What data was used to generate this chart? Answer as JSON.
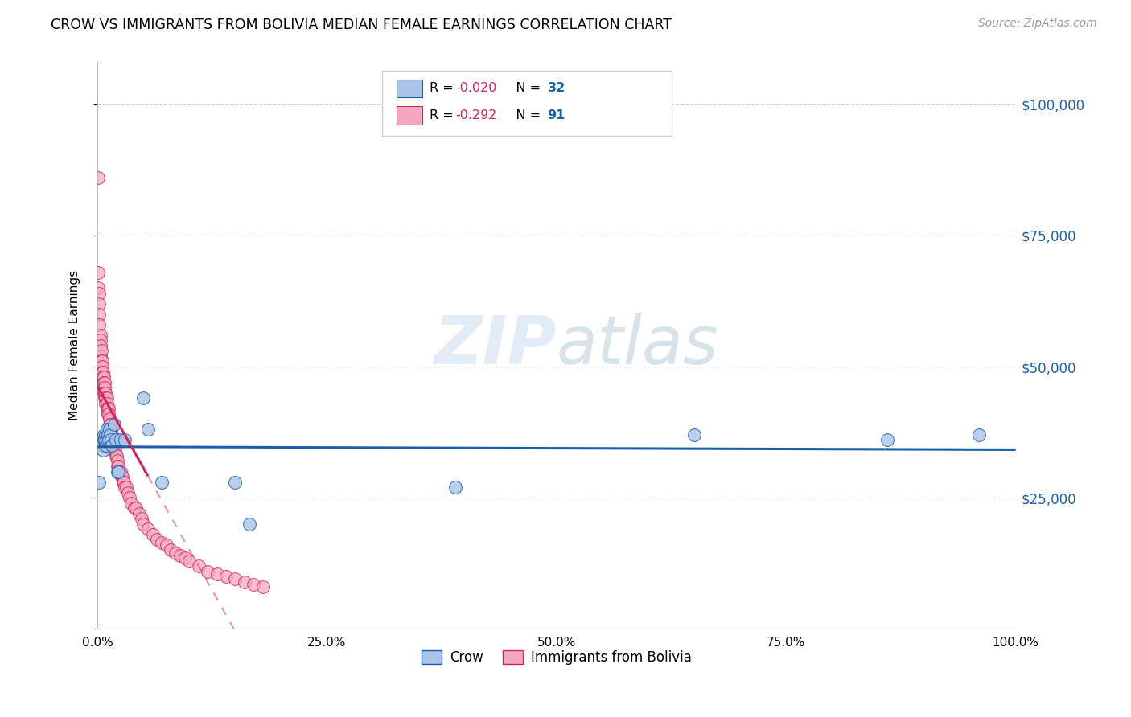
{
  "title": "CROW VS IMMIGRANTS FROM BOLIVIA MEDIAN FEMALE EARNINGS CORRELATION CHART",
  "source": "Source: ZipAtlas.com",
  "ylabel": "Median Female Earnings",
  "yticks": [
    0,
    25000,
    50000,
    75000,
    100000
  ],
  "ytick_labels": [
    "",
    "$25,000",
    "$50,000",
    "$75,000",
    "$100,000"
  ],
  "xlim": [
    0,
    1.0
  ],
  "ylim": [
    0,
    108000
  ],
  "crow_R": "-0.020",
  "crow_N": "32",
  "bolivia_R": "-0.292",
  "bolivia_N": "91",
  "crow_color": "#aac4e8",
  "crow_edge_color": "#1a5fa8",
  "bolivia_color": "#f4a8c0",
  "bolivia_edge_color": "#d42060",
  "crow_line_color": "#1a5fa8",
  "bolivia_line_color": "#d42060",
  "crow_scatter_x": [
    0.002,
    0.004,
    0.005,
    0.006,
    0.007,
    0.007,
    0.008,
    0.009,
    0.009,
    0.01,
    0.01,
    0.011,
    0.012,
    0.013,
    0.014,
    0.015,
    0.016,
    0.018,
    0.02,
    0.022,
    0.023,
    0.025,
    0.03,
    0.05,
    0.055,
    0.07,
    0.15,
    0.165,
    0.39,
    0.65,
    0.86,
    0.96
  ],
  "crow_scatter_y": [
    28000,
    36000,
    35000,
    34000,
    36000,
    37000,
    36000,
    35000,
    37000,
    36000,
    38000,
    37000,
    36000,
    38000,
    37000,
    36000,
    35000,
    39000,
    36000,
    30000,
    30000,
    36000,
    36000,
    44000,
    38000,
    28000,
    28000,
    20000,
    27000,
    37000,
    36000,
    37000
  ],
  "bolivia_scatter_x": [
    0.001,
    0.001,
    0.001,
    0.002,
    0.002,
    0.002,
    0.002,
    0.003,
    0.003,
    0.003,
    0.003,
    0.004,
    0.004,
    0.004,
    0.004,
    0.005,
    0.005,
    0.005,
    0.005,
    0.006,
    0.006,
    0.006,
    0.007,
    0.007,
    0.007,
    0.007,
    0.008,
    0.008,
    0.008,
    0.008,
    0.009,
    0.009,
    0.009,
    0.01,
    0.01,
    0.01,
    0.011,
    0.011,
    0.012,
    0.012,
    0.013,
    0.013,
    0.014,
    0.015,
    0.015,
    0.016,
    0.016,
    0.017,
    0.017,
    0.018,
    0.018,
    0.019,
    0.02,
    0.021,
    0.022,
    0.022,
    0.023,
    0.024,
    0.025,
    0.026,
    0.027,
    0.028,
    0.029,
    0.03,
    0.031,
    0.033,
    0.035,
    0.037,
    0.04,
    0.042,
    0.045,
    0.048,
    0.05,
    0.055,
    0.06,
    0.065,
    0.07,
    0.075,
    0.08,
    0.085,
    0.09,
    0.095,
    0.1,
    0.11,
    0.12,
    0.13,
    0.14,
    0.15,
    0.16,
    0.17,
    0.18
  ],
  "bolivia_scatter_y": [
    86000,
    68000,
    65000,
    64000,
    62000,
    60000,
    58000,
    56000,
    55000,
    54000,
    52000,
    53000,
    51000,
    50000,
    49000,
    51000,
    50000,
    49000,
    48000,
    49000,
    48000,
    47000,
    48000,
    47000,
    46000,
    45000,
    47000,
    46000,
    45000,
    44000,
    45000,
    44000,
    43000,
    44000,
    43000,
    42000,
    42000,
    41000,
    42000,
    41000,
    40000,
    39000,
    39000,
    38000,
    37000,
    37000,
    36000,
    36000,
    35000,
    35000,
    34000,
    34000,
    33000,
    33000,
    32000,
    31000,
    31000,
    30000,
    30000,
    29000,
    29000,
    28000,
    28000,
    27000,
    27000,
    26000,
    25000,
    24000,
    23000,
    23000,
    22000,
    21000,
    20000,
    19000,
    18000,
    17000,
    16500,
    16000,
    15000,
    14500,
    14000,
    13500,
    13000,
    12000,
    11000,
    10500,
    10000,
    9500,
    9000,
    8500,
    8000
  ]
}
